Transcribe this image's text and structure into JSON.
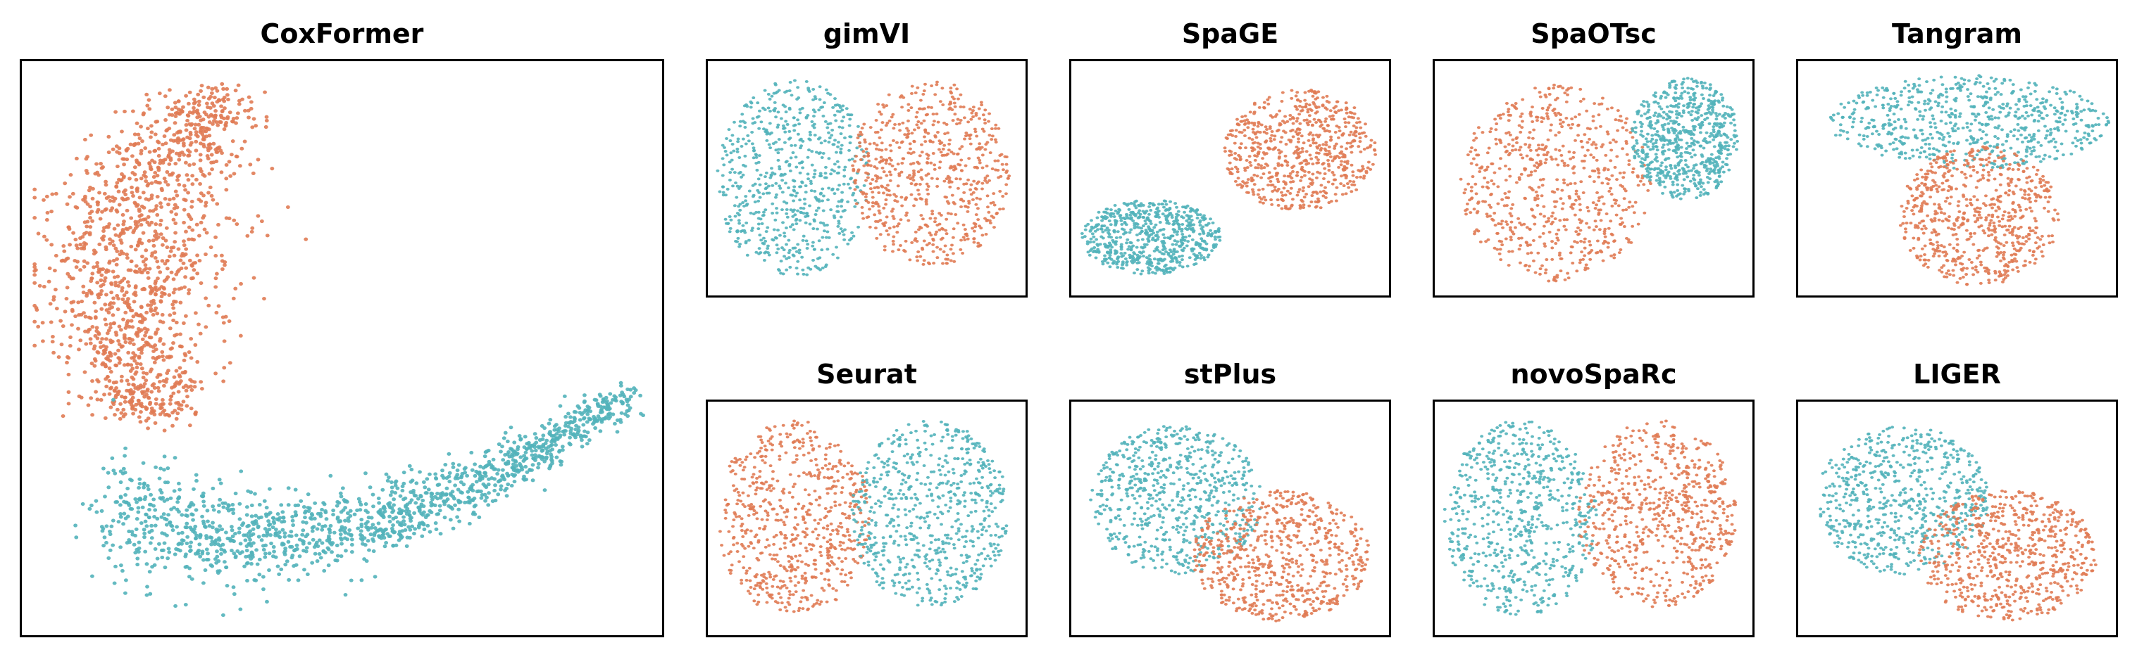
{
  "colors": {
    "cluster_a": "#E07B54",
    "cluster_b": "#52B2BA"
  },
  "chart_data": [
    {
      "type": "scatter",
      "title": "CoxFormer",
      "shape": "boomerang",
      "legend": "none",
      "grid": false,
      "axes": "hidden",
      "series": [
        {
          "color": "#E07B54"
        },
        {
          "color": "#52B2BA"
        }
      ]
    },
    {
      "type": "scatter",
      "title": "gimVI",
      "shape": "left-right",
      "legend": "none",
      "grid": false,
      "axes": "hidden",
      "series": [
        {
          "color": "#52B2BA"
        },
        {
          "color": "#E07B54"
        }
      ]
    },
    {
      "type": "scatter",
      "title": "SpaGE",
      "shape": "diagonal",
      "legend": "none",
      "grid": false,
      "axes": "hidden",
      "series": [
        {
          "color": "#52B2BA"
        },
        {
          "color": "#E07B54"
        }
      ]
    },
    {
      "type": "scatter",
      "title": "SpaOTsc",
      "shape": "big-left-small-right",
      "legend": "none",
      "grid": false,
      "axes": "hidden",
      "series": [
        {
          "color": "#E07B54"
        },
        {
          "color": "#52B2BA"
        }
      ]
    },
    {
      "type": "scatter",
      "title": "Tangram",
      "shape": "top-bottom",
      "legend": "none",
      "grid": false,
      "axes": "hidden",
      "series": [
        {
          "color": "#52B2BA"
        },
        {
          "color": "#E07B54"
        }
      ]
    },
    {
      "type": "scatter",
      "title": "Seurat",
      "shape": "left-right",
      "legend": "none",
      "grid": false,
      "axes": "hidden",
      "series": [
        {
          "color": "#E07B54"
        },
        {
          "color": "#52B2BA"
        }
      ]
    },
    {
      "type": "scatter",
      "title": "stPlus",
      "shape": "upper-left-lower-right",
      "legend": "none",
      "grid": false,
      "axes": "hidden",
      "series": [
        {
          "color": "#52B2BA"
        },
        {
          "color": "#E07B54"
        }
      ]
    },
    {
      "type": "scatter",
      "title": "novoSpaRc",
      "shape": "left-right",
      "legend": "none",
      "grid": false,
      "axes": "hidden",
      "series": [
        {
          "color": "#52B2BA"
        },
        {
          "color": "#E07B54"
        }
      ]
    },
    {
      "type": "scatter",
      "title": "LIGER",
      "shape": "upper-left-lower-right",
      "legend": "none",
      "grid": false,
      "axes": "hidden",
      "series": [
        {
          "color": "#52B2BA"
        },
        {
          "color": "#E07B54"
        }
      ]
    }
  ]
}
